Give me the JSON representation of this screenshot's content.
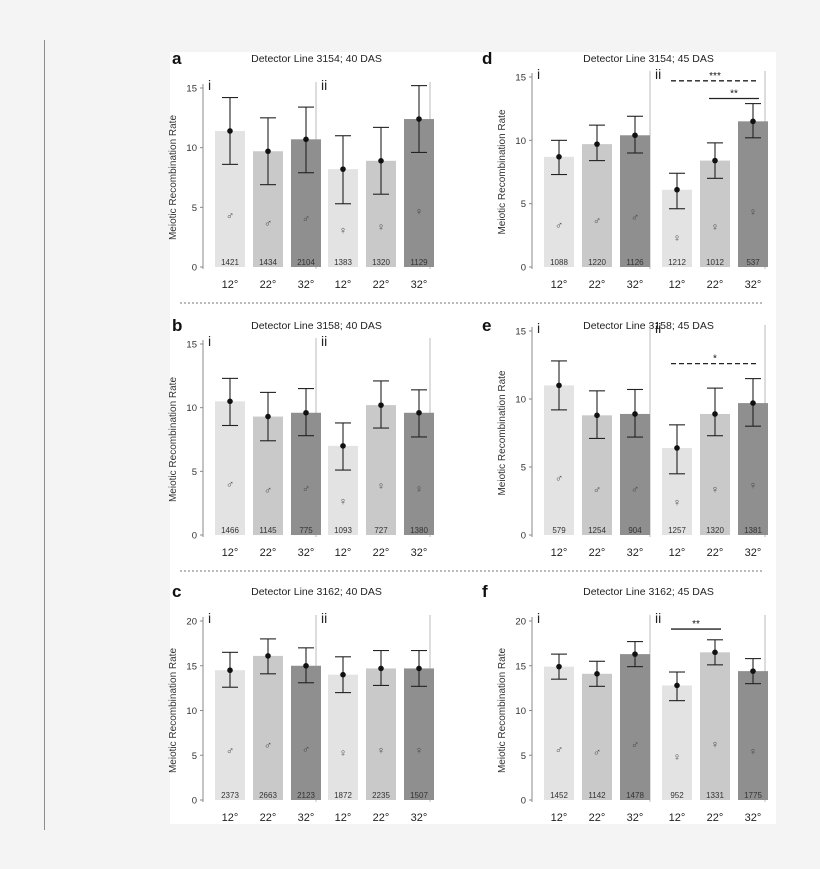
{
  "chart_data": [
    {
      "type": "bar",
      "panel_letter": "a",
      "title": "Detector Line 3154; 40 DAS",
      "ylabel": "Meiotic Recombination Rate",
      "ylim": [
        0,
        15
      ],
      "yticks": [
        0,
        5,
        10,
        15
      ],
      "groups": [
        {
          "label": "i",
          "sex": "♂",
          "bars": [
            {
              "category": "12°",
              "value": 11.4,
              "err_low": 8.6,
              "err_high": 14.2,
              "n": "1421",
              "color": "#e3e3e3"
            },
            {
              "category": "22°",
              "value": 9.7,
              "err_low": 6.9,
              "err_high": 12.5,
              "n": "1434",
              "color": "#c9c9c9"
            },
            {
              "category": "32°",
              "value": 10.7,
              "err_low": 7.9,
              "err_high": 13.4,
              "n": "2104",
              "color": "#8f8f8f"
            }
          ]
        },
        {
          "label": "ii",
          "sex": "♀",
          "bars": [
            {
              "category": "12°",
              "value": 8.2,
              "err_low": 5.3,
              "err_high": 11.0,
              "n": "1383",
              "color": "#e3e3e3"
            },
            {
              "category": "22°",
              "value": 8.9,
              "err_low": 6.1,
              "err_high": 11.7,
              "n": "1320",
              "color": "#c9c9c9"
            },
            {
              "category": "32°",
              "value": 12.4,
              "err_low": 9.6,
              "err_high": 15.2,
              "n": "1129",
              "color": "#8f8f8f"
            }
          ]
        }
      ],
      "significance": []
    },
    {
      "type": "bar",
      "panel_letter": "d",
      "title": "Detector Line 3154; 45 DAS",
      "ylabel": "Meiotic Recombination Rate",
      "ylim": [
        0,
        15
      ],
      "yticks": [
        0,
        5,
        10,
        15
      ],
      "groups": [
        {
          "label": "i",
          "sex": "♂",
          "bars": [
            {
              "category": "12°",
              "value": 8.7,
              "err_low": 7.3,
              "err_high": 10.0,
              "n": "1088",
              "color": "#e3e3e3"
            },
            {
              "category": "22°",
              "value": 9.7,
              "err_low": 8.4,
              "err_high": 11.2,
              "n": "1220",
              "color": "#c9c9c9"
            },
            {
              "category": "32°",
              "value": 10.4,
              "err_low": 9.0,
              "err_high": 11.9,
              "n": "1126",
              "color": "#8f8f8f"
            }
          ]
        },
        {
          "label": "ii",
          "sex": "♀",
          "bars": [
            {
              "category": "12°",
              "value": 6.1,
              "err_low": 4.6,
              "err_high": 7.4,
              "n": "1212",
              "color": "#e3e3e3"
            },
            {
              "category": "22°",
              "value": 8.4,
              "err_low": 7.0,
              "err_high": 9.8,
              "n": "1012",
              "color": "#c9c9c9"
            },
            {
              "category": "32°",
              "value": 11.5,
              "err_low": 10.2,
              "err_high": 12.9,
              "n": "537",
              "color": "#8f8f8f"
            }
          ]
        }
      ],
      "significance": [
        {
          "label": "***",
          "style": "dashed",
          "from_group": 1,
          "from_bar": 0,
          "to_group": 1,
          "to_bar": 2,
          "y": 14.7
        },
        {
          "label": "**",
          "style": "solid",
          "from_group": 1,
          "from_bar": 1,
          "to_group": 1,
          "to_bar": 2,
          "y": 13.3
        }
      ]
    },
    {
      "type": "bar",
      "panel_letter": "b",
      "title": "Detector Line 3158; 40 DAS",
      "ylabel": "Meiotic Recombination Rate",
      "ylim": [
        0,
        15
      ],
      "yticks": [
        0,
        5,
        10,
        15
      ],
      "groups": [
        {
          "label": "i",
          "sex": "♂",
          "bars": [
            {
              "category": "12°",
              "value": 10.5,
              "err_low": 8.6,
              "err_high": 12.3,
              "n": "1466",
              "color": "#e3e3e3"
            },
            {
              "category": "22°",
              "value": 9.3,
              "err_low": 7.4,
              "err_high": 11.2,
              "n": "1145",
              "color": "#c9c9c9"
            },
            {
              "category": "32°",
              "value": 9.6,
              "err_low": 7.8,
              "err_high": 11.5,
              "n": "775",
              "color": "#8f8f8f"
            }
          ]
        },
        {
          "label": "ii",
          "sex": "♀",
          "bars": [
            {
              "category": "12°",
              "value": 7.0,
              "err_low": 5.1,
              "err_high": 8.8,
              "n": "1093",
              "color": "#e3e3e3"
            },
            {
              "category": "22°",
              "value": 10.2,
              "err_low": 8.4,
              "err_high": 12.1,
              "n": "727",
              "color": "#c9c9c9"
            },
            {
              "category": "32°",
              "value": 9.6,
              "err_low": 7.7,
              "err_high": 11.4,
              "n": "1380",
              "color": "#8f8f8f"
            }
          ]
        }
      ],
      "significance": []
    },
    {
      "type": "bar",
      "panel_letter": "e",
      "title": "Detector Line 3158; 45 DAS",
      "ylabel": "Meiotic Recombination Rate",
      "ylim": [
        0,
        15
      ],
      "yticks": [
        0,
        5,
        10,
        15
      ],
      "groups": [
        {
          "label": "i",
          "sex": "♂",
          "bars": [
            {
              "category": "12°",
              "value": 11.0,
              "err_low": 9.2,
              "err_high": 12.8,
              "n": "579",
              "color": "#e3e3e3"
            },
            {
              "category": "22°",
              "value": 8.8,
              "err_low": 7.1,
              "err_high": 10.6,
              "n": "1254",
              "color": "#c9c9c9"
            },
            {
              "category": "32°",
              "value": 8.9,
              "err_low": 7.2,
              "err_high": 10.7,
              "n": "904",
              "color": "#8f8f8f"
            }
          ]
        },
        {
          "label": "ii",
          "sex": "♀",
          "bars": [
            {
              "category": "12°",
              "value": 6.4,
              "err_low": 4.5,
              "err_high": 8.1,
              "n": "1257",
              "color": "#e3e3e3"
            },
            {
              "category": "22°",
              "value": 8.9,
              "err_low": 7.3,
              "err_high": 10.8,
              "n": "1320",
              "color": "#c9c9c9"
            },
            {
              "category": "32°",
              "value": 9.7,
              "err_low": 8.0,
              "err_high": 11.5,
              "n": "1381",
              "color": "#8f8f8f"
            }
          ]
        }
      ],
      "significance": [
        {
          "label": "*",
          "style": "dashed",
          "from_group": 1,
          "from_bar": 0,
          "to_group": 1,
          "to_bar": 2,
          "y": 12.6
        }
      ]
    },
    {
      "type": "bar",
      "panel_letter": "c",
      "title": "Detector Line 3162; 40 DAS",
      "ylabel": "Meiotic Recombination Rate",
      "ylim": [
        0,
        20
      ],
      "yticks": [
        0,
        5,
        10,
        15,
        20
      ],
      "groups": [
        {
          "label": "i",
          "sex": "♂",
          "bars": [
            {
              "category": "12°",
              "value": 14.5,
              "err_low": 12.6,
              "err_high": 16.5,
              "n": "2373",
              "color": "#e3e3e3"
            },
            {
              "category": "22°",
              "value": 16.1,
              "err_low": 14.1,
              "err_high": 18.0,
              "n": "2663",
              "color": "#c9c9c9"
            },
            {
              "category": "32°",
              "value": 15.0,
              "err_low": 13.1,
              "err_high": 17.0,
              "n": "2123",
              "color": "#8f8f8f"
            }
          ]
        },
        {
          "label": "ii",
          "sex": "♀",
          "bars": [
            {
              "category": "12°",
              "value": 14.0,
              "err_low": 12.0,
              "err_high": 16.0,
              "n": "1872",
              "color": "#e3e3e3"
            },
            {
              "category": "22°",
              "value": 14.7,
              "err_low": 12.8,
              "err_high": 16.7,
              "n": "2235",
              "color": "#c9c9c9"
            },
            {
              "category": "32°",
              "value": 14.7,
              "err_low": 12.7,
              "err_high": 16.7,
              "n": "1507",
              "color": "#8f8f8f"
            }
          ]
        }
      ],
      "significance": []
    },
    {
      "type": "bar",
      "panel_letter": "f",
      "title": "Detector Line 3162; 45 DAS",
      "ylabel": "Meiotic Recombination Rate",
      "ylim": [
        0,
        20
      ],
      "yticks": [
        0,
        5,
        10,
        15,
        20
      ],
      "groups": [
        {
          "label": "i",
          "sex": "♂",
          "bars": [
            {
              "category": "12°",
              "value": 14.9,
              "err_low": 13.5,
              "err_high": 16.3,
              "n": "1452",
              "color": "#e3e3e3"
            },
            {
              "category": "22°",
              "value": 14.1,
              "err_low": 12.7,
              "err_high": 15.5,
              "n": "1142",
              "color": "#c9c9c9"
            },
            {
              "category": "32°",
              "value": 16.3,
              "err_low": 14.9,
              "err_high": 17.7,
              "n": "1478",
              "color": "#8f8f8f"
            }
          ]
        },
        {
          "label": "ii",
          "sex": "♀",
          "bars": [
            {
              "category": "12°",
              "value": 12.8,
              "err_low": 11.1,
              "err_high": 14.3,
              "n": "952",
              "color": "#e3e3e3"
            },
            {
              "category": "22°",
              "value": 16.5,
              "err_low": 15.1,
              "err_high": 17.9,
              "n": "1331",
              "color": "#c9c9c9"
            },
            {
              "category": "32°",
              "value": 14.4,
              "err_low": 13.0,
              "err_high": 15.8,
              "n": "1775",
              "color": "#8f8f8f"
            }
          ]
        }
      ],
      "significance": [
        {
          "label": "**",
          "style": "solid",
          "from_group": 1,
          "from_bar": 0,
          "to_group": 1,
          "to_bar": 1,
          "y": 19.1
        }
      ]
    }
  ]
}
